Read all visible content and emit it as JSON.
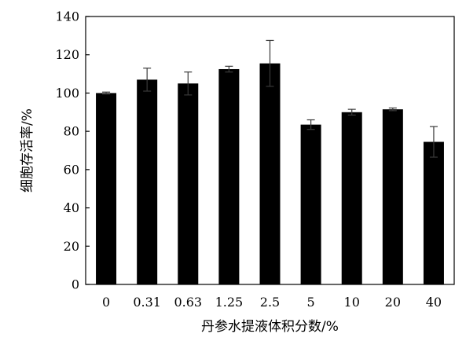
{
  "chart_data": {
    "type": "bar",
    "xlabel": "丹参水提液体积分数/%",
    "ylabel": "细胞存活率/%",
    "categories": [
      "0",
      "0.31",
      "0.63",
      "1.25",
      "2.5",
      "5",
      "10",
      "20",
      "40"
    ],
    "values": [
      100,
      107,
      105,
      112.5,
      115.5,
      83.5,
      90,
      91.5,
      74.5
    ],
    "errors": [
      0.5,
      6,
      6,
      1.5,
      12,
      2.5,
      1.5,
      0.7,
      8
    ],
    "ylim": [
      0,
      140
    ],
    "yticks": [
      0,
      20,
      40,
      60,
      80,
      100,
      120,
      140
    ],
    "bar_color": "#000000",
    "grid": false
  }
}
